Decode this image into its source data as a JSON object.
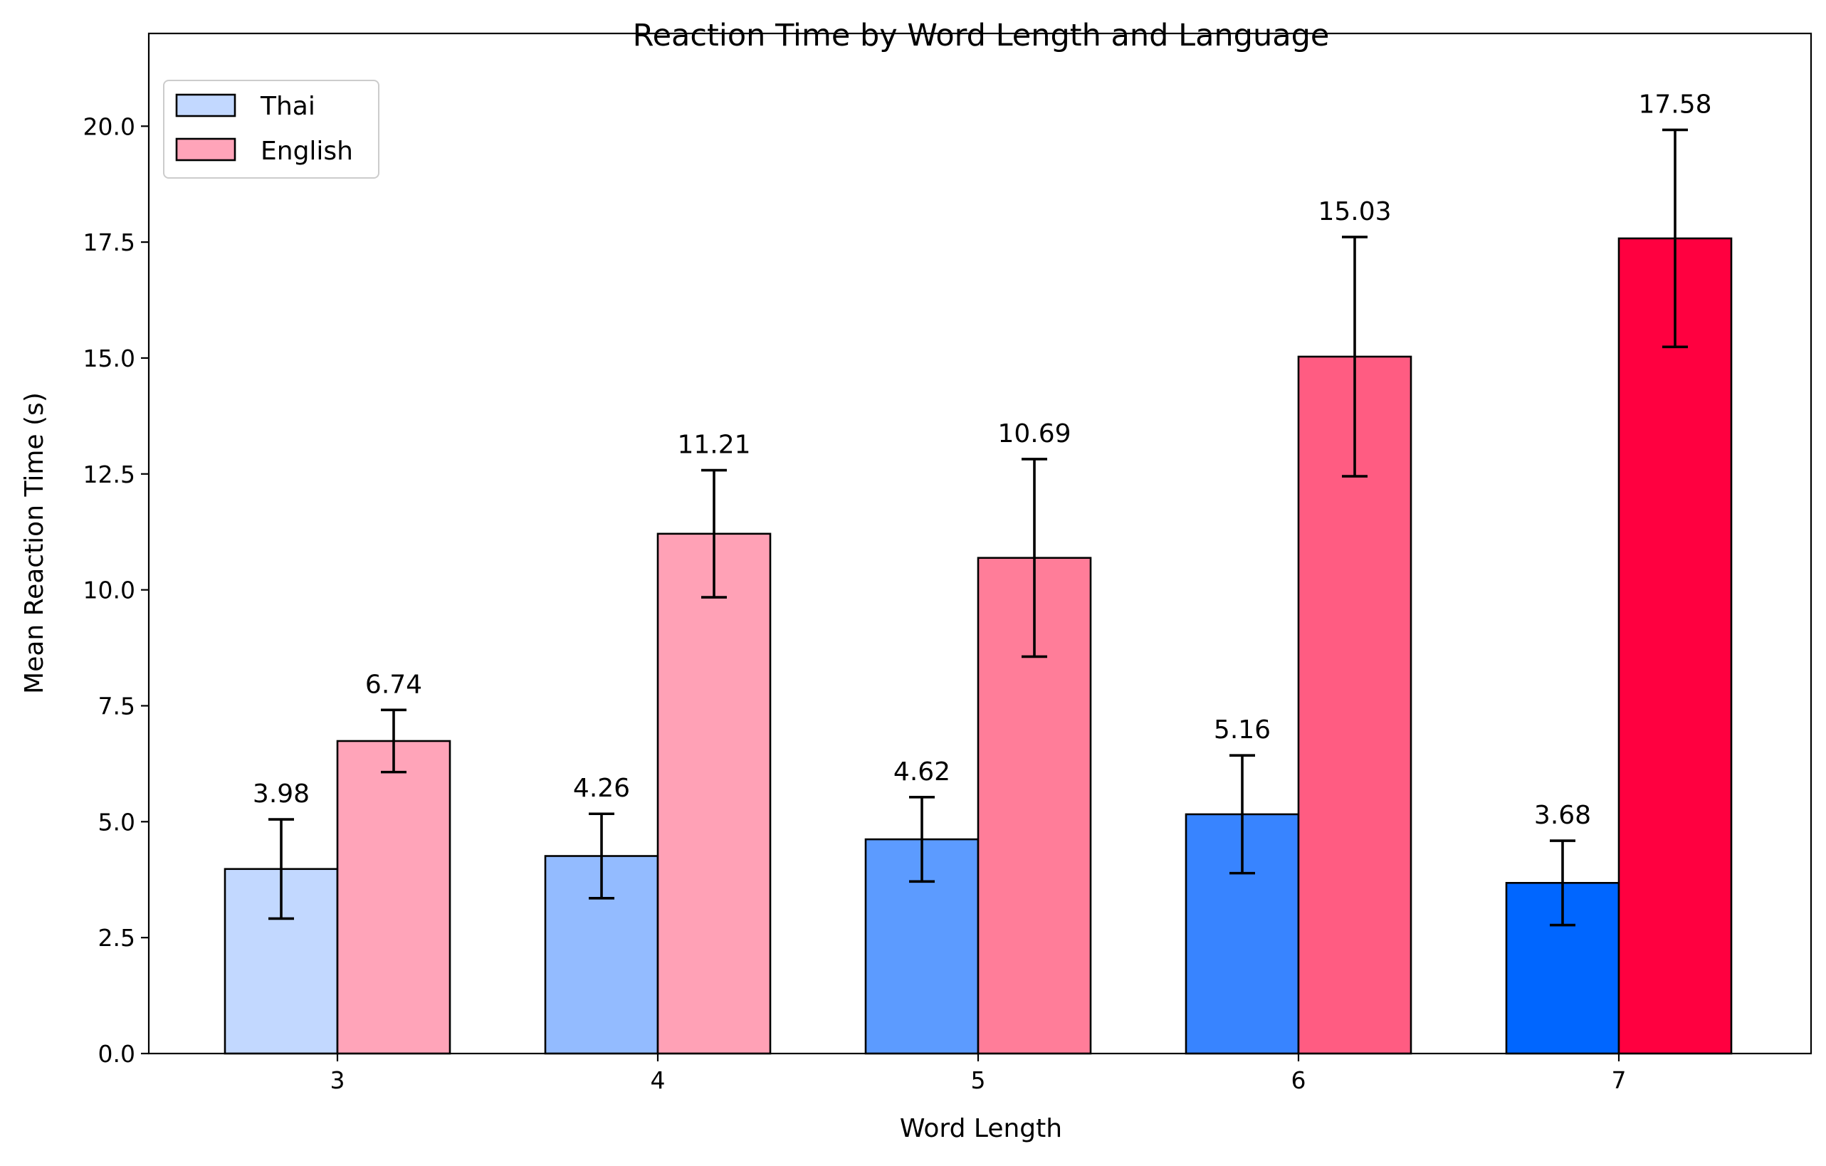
{
  "chart_data": {
    "type": "bar",
    "title": "Reaction Time by Word Length and Language",
    "xlabel": "Word Length",
    "ylabel": "Mean Reaction Time (s)",
    "categories": [
      "3",
      "4",
      "5",
      "6",
      "7"
    ],
    "ylim": [
      0,
      22
    ],
    "yticks": [
      "0.0",
      "2.5",
      "5.0",
      "7.5",
      "10.0",
      "12.5",
      "15.0",
      "17.5",
      "20.0"
    ],
    "grid": false,
    "legend_position": "top-left",
    "series": [
      {
        "name": "Thai",
        "values": [
          3.98,
          4.26,
          4.62,
          5.16,
          3.68
        ],
        "errors": [
          1.07,
          0.91,
          0.91,
          1.27,
          0.91
        ],
        "labels": [
          "3.98",
          "4.26",
          "4.62",
          "5.16",
          "3.68"
        ],
        "legend_color": "#c2d8ff",
        "colors": [
          "#c2d8ff",
          "#93bbff",
          "#5c9bff",
          "#3884ff",
          "#0066ff"
        ]
      },
      {
        "name": "English",
        "values": [
          6.74,
          11.21,
          10.69,
          15.03,
          17.58
        ],
        "errors": [
          0.67,
          1.37,
          2.13,
          2.58,
          2.34
        ],
        "labels": [
          "6.74",
          "11.21",
          "10.69",
          "15.03",
          "17.58"
        ],
        "legend_color": "#ffa4b9",
        "colors": [
          "#ffa4b9",
          "#ffa1b6",
          "#ff7d99",
          "#ff5c82",
          "#ff0040"
        ]
      }
    ]
  }
}
